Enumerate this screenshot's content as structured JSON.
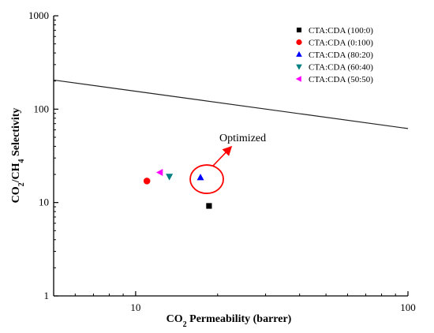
{
  "chart_data": {
    "type": "scatter",
    "xlabel": "CO2 Permeability (barrer)",
    "ylabel": "CO2/CH4 Selectivity",
    "x_scale": "log",
    "y_scale": "log",
    "xlim": [
      5,
      100
    ],
    "ylim": [
      1,
      1000
    ],
    "x_ticks": [
      {
        "value": 10,
        "label": "10"
      },
      {
        "value": 100,
        "label": "100"
      }
    ],
    "y_ticks": [
      {
        "value": 1,
        "label": "1"
      },
      {
        "value": 10,
        "label": "10"
      },
      {
        "value": 100,
        "label": "100"
      },
      {
        "value": 1000,
        "label": "1000"
      }
    ],
    "grid": false,
    "legend_position": "top-right",
    "series": [
      {
        "name": "CTA:CDA (100:0)",
        "marker": "square",
        "color": "#000000",
        "points": [
          {
            "x": 18.6,
            "y": 9.2
          }
        ]
      },
      {
        "name": "CTA:CDA (0:100)",
        "marker": "circle",
        "color": "#ff0000",
        "points": [
          {
            "x": 11.0,
            "y": 17.0
          }
        ]
      },
      {
        "name": "CTA:CDA (80:20)",
        "marker": "triangle-up",
        "color": "#0000ff",
        "points": [
          {
            "x": 17.3,
            "y": 18.5
          }
        ]
      },
      {
        "name": "CTA:CDA (60:40)",
        "marker": "triangle-down",
        "color": "#008080",
        "points": [
          {
            "x": 13.3,
            "y": 19.0
          }
        ]
      },
      {
        "name": "CTA:CDA (50:50)",
        "marker": "triangle-left",
        "color": "#ff00ff",
        "points": [
          {
            "x": 12.3,
            "y": 21.0
          }
        ]
      }
    ],
    "upper_bound_line": {
      "points": [
        {
          "x": 5,
          "y": 205
        },
        {
          "x": 100,
          "y": 62
        }
      ]
    },
    "annotation": {
      "text": "Optimized",
      "target": {
        "x": 17.3,
        "y": 18.5
      },
      "ellipse_color": "#ff0000"
    }
  }
}
